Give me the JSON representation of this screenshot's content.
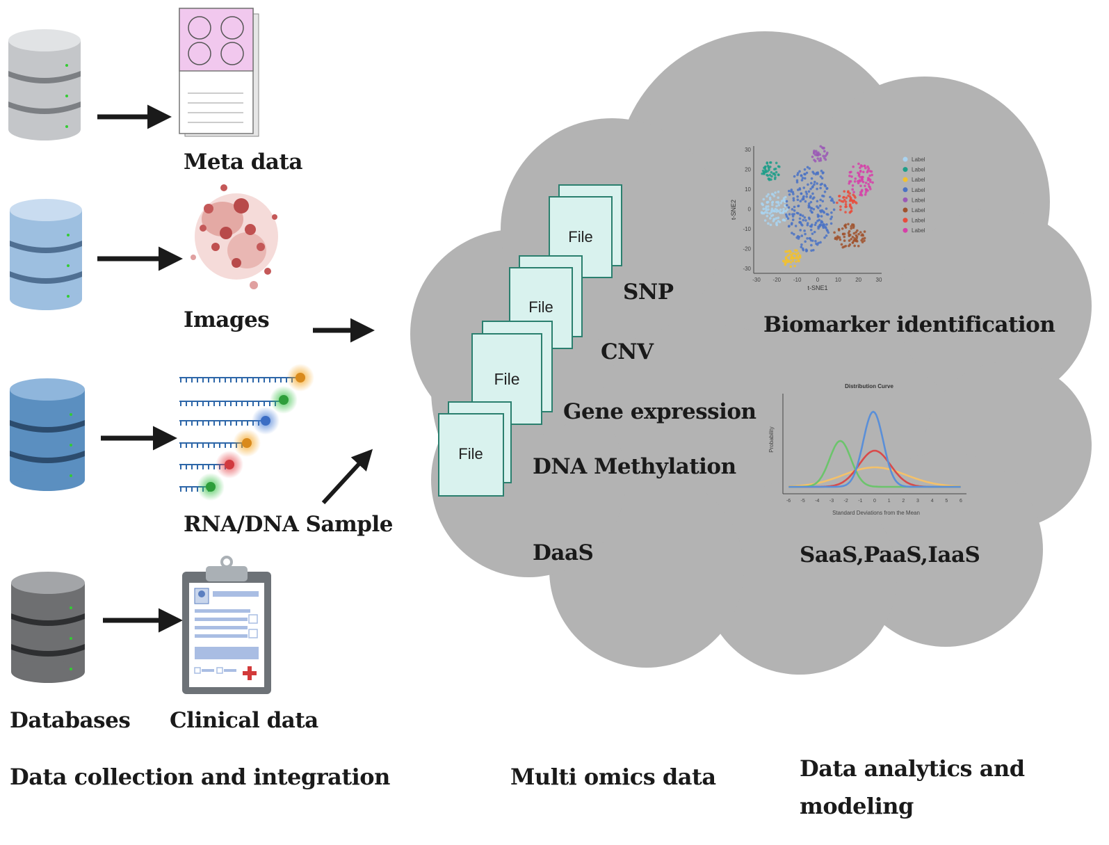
{
  "inputs": {
    "meta_data": "Meta data",
    "images": "Images",
    "rna_dna": "RNA/DNA Sample",
    "clinical": "Clinical data",
    "databases": "Databases"
  },
  "file_label": "File",
  "omics": [
    "SNP",
    "CNV",
    "Gene expression",
    "DNA Methylation"
  ],
  "daas": "DaaS",
  "analytics": {
    "biomarker": "Biomarker identification",
    "services": "SaaS,PaaS,IaaS"
  },
  "tsne": {
    "xlabel": "t-SNE1",
    "ylabel": "t-SNE2",
    "xticks": [
      "-30",
      "-20",
      "-10",
      "0",
      "10",
      "20",
      "30"
    ],
    "yticks": [
      "30",
      "20",
      "10",
      "0",
      "-10",
      "-20",
      "-30"
    ],
    "legend": [
      "Label",
      "Label",
      "Label",
      "Label",
      "Label",
      "Label",
      "Label",
      "Label"
    ],
    "colors": [
      "#a9d3f0",
      "#1f9e89",
      "#f2c12e",
      "#4a72c4",
      "#9b59b6",
      "#a0522d",
      "#e74c3c",
      "#d63fa8"
    ]
  },
  "dist": {
    "title": "Distribution Curve",
    "xlabel": "Standard Deviations from the Mean",
    "ylabel": "Probability",
    "xticks": [
      "-6",
      "-5",
      "-4",
      "-3",
      "-2",
      "-1",
      "0",
      "1",
      "2",
      "3",
      "4",
      "5",
      "6"
    ]
  },
  "footer": {
    "left": "Data collection and integration",
    "middle": "Multi omics data",
    "right_line1": "Data analytics and",
    "right_line2": "modeling"
  },
  "colors": {
    "cloud": "#b3b3b3",
    "file_fill": "#d9f2ee",
    "file_stroke": "#2a7f6e",
    "arrow": "#1a1a1a"
  }
}
